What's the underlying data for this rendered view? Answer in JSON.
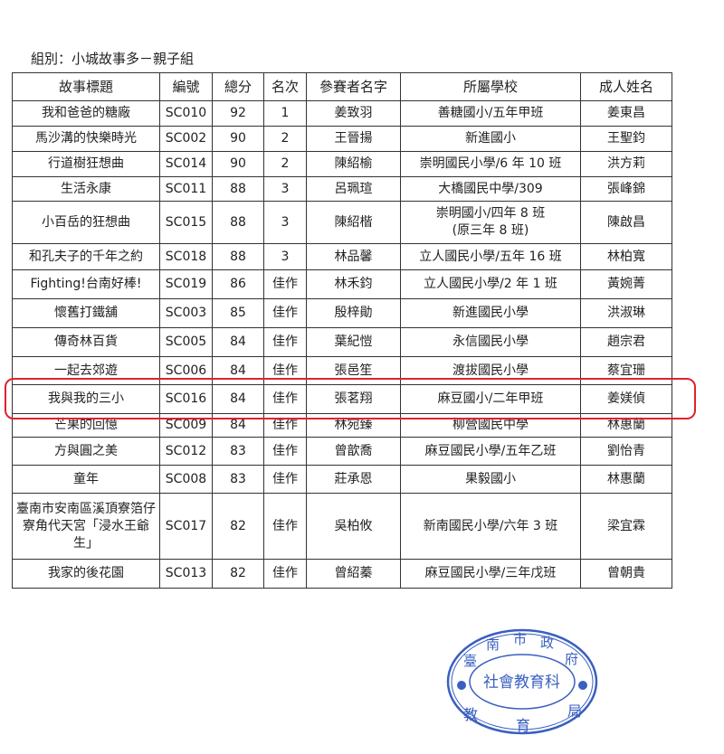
{
  "group_label": "組別：小城故事多－親子組",
  "headers": [
    "故事標題",
    "編號",
    "總分",
    "名次",
    "參賽者名字",
    "所屬學校",
    "成人姓名"
  ],
  "rows": [
    [
      "我和爸爸的糖廠",
      "SC010",
      "92",
      "1",
      "姜致羽",
      "善糖國小/五年甲班",
      "姜東昌"
    ],
    [
      "馬沙溝的快樂時光",
      "SC002",
      "90",
      "2",
      "王晉揚",
      "新進國小",
      "王聖鈞"
    ],
    [
      "行道樹狂想曲",
      "SC014",
      "90",
      "2",
      "陳紹榆",
      "崇明國民小學/6 年 10 班",
      "洪方莉"
    ],
    [
      "生活永康",
      "SC011",
      "88",
      "3",
      "呂珮瑄",
      "大橋國民中學/309",
      "張峰錦"
    ],
    [
      "小百岳的狂想曲",
      "SC015",
      "88",
      "3",
      "陳紹楷",
      "崇明國小/四年 8 班\n(原三年 8 班)",
      "陳啟昌"
    ],
    [
      "和孔夫子的千年之約",
      "SC018",
      "88",
      "3",
      "林品馨",
      "立人國民小學/五年 16 班",
      "林柏寬"
    ],
    [
      "Fighting!台南好棒!",
      "SC019",
      "86",
      "佳作",
      "林禾鈞",
      "立人國民小學/2 年 1 班",
      "黃婉菁"
    ],
    [
      "懷舊打鐵舖",
      "SC003",
      "85",
      "佳作",
      "殷梓勛",
      "新進國民小學",
      "洪淑琳"
    ],
    [
      "傳奇林百貨",
      "SC005",
      "84",
      "佳作",
      "葉紀愷",
      "永信國民小學",
      "趙宗君"
    ],
    [
      "一起去郊遊",
      "SC006",
      "84",
      "佳作",
      "張邑笙",
      "渡拔國民小學",
      "蔡宜珊"
    ],
    [
      "我與我的三小",
      "SC016",
      "84",
      "佳作",
      "張茗翔",
      "麻豆國小/二年甲班",
      "姜媄偵"
    ],
    [
      "芒果的回憶",
      "SC009",
      "84",
      "佳作",
      "林宛臻",
      "柳營國民中學",
      "林惠蘭"
    ],
    [
      "方與圓之美",
      "SC012",
      "83",
      "佳作",
      "曾歆喬",
      "麻豆國民小學/五年乙班",
      "劉怡青"
    ],
    [
      "童年",
      "SC008",
      "83",
      "佳作",
      "莊承恩",
      "果毅國小",
      "林惠蘭"
    ],
    [
      "臺南市安南區溪頂寮箔仔寮角代天宮「浸水王爺生」",
      "SC017",
      "82",
      "佳作",
      "吳柏攸",
      "新南國民小學/六年 3 班",
      "梁宜霖"
    ],
    [
      "我家的後花園",
      "SC013",
      "82",
      "佳作",
      "曾紹蓁",
      "麻豆國民小學/三年戊班",
      "曾朝貴"
    ]
  ],
  "highlight_row": 10,
  "stamp": {
    "outer_top": "臺南市政府",
    "outer_bottom": "教育局",
    "inner": "社會教育科",
    "color": "#3a5fc0"
  },
  "highlight_color": "#e0222b"
}
